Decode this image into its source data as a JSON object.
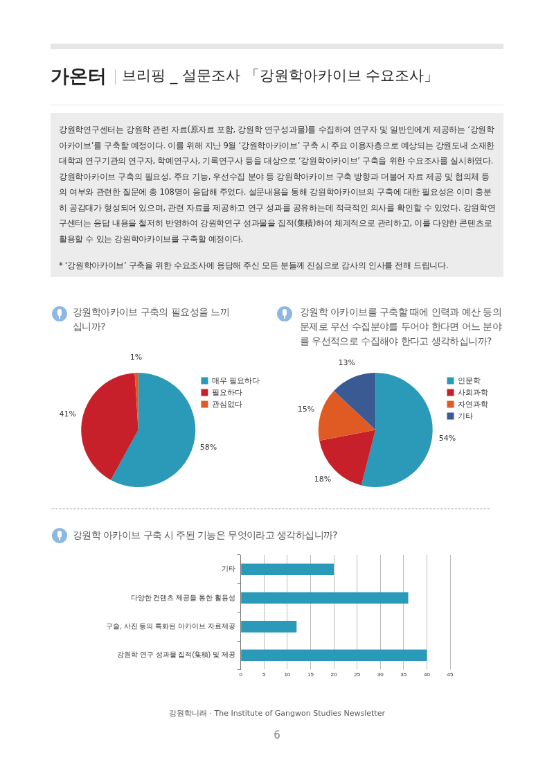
{
  "chart_data": [
    {
      "type": "other",
      "title": "가온터",
      "subtitle": "브리핑 _ 설문조사 「강원학아카이브 수요조사」",
      "annotations": [
        "강원학연구센터는 강원학 관련 자료(原자료 포함, 강원학 연구성과물)를 수집하여 연구자 및 일반인에게 제공하는 ‘강원학아카이브’를 구축할 예정이다. 이를 위해 지난 9월 ‘강원학아카이브’ 구축 시 주요 이용자층으로 예상되는 강원도내 소재한 대학과 연구기관의 연구자, 학예연구사, 기록연구사 등을 대상으로 ‘강원학아카이브’ 구축을 위한 수요조사를 실시하였다.",
        "강원학아카이브 구축의 필요성, 주요 기능, 우선수집 분야 등 강원학아카이브 구축 방향과 더불어 자료 제공 및 협의체 등의 여부와 관련한 질문에 총 108명이 응답해 주었다. 설문내용을 통해 강원학아카이브의 구축에 대한 필요성은 이미 충분히 공감대가 형성되어 있으며, 관련 자료를 제공하고 연구 성과를 공유하는데 적극적인 의사를 확인할 수 있었다. 강원학연구센터는 응답 내용을 철저히 반영하여 강원학연구 성과물을 집적(集積)하여 체계적으로 관리하고, 이를 다양한 콘텐츠로 활용할 수 있는 강원학아카이브를 구축할 예정이다.",
        "* ‘강원학아카이브’ 구축을 위한 수요조사에 응답해 주신 모든 분들께 진심으로 감사의 인사를 전해 드립니다.",
        "강원학니래 · The Institute of Gangwon Studies  Newsletter",
        "6"
      ]
    },
    {
      "type": "pie",
      "title": "강원학아카이브 구축의 필요성을 느끼십니까?",
      "categories": [
        "매우 필요하다",
        "필요하다",
        "관심없다"
      ],
      "values": [
        58,
        41,
        1
      ],
      "colors": [
        "#2a9ab8",
        "#c8202a",
        "#e05a23"
      ],
      "value_labels": [
        "58%",
        "41%",
        "1%"
      ],
      "legend": "right"
    },
    {
      "type": "pie",
      "title": "강원학 아카이브를 구축할 때에 인력과 예산 등의 문제로 우선 수집분야를 두어야 한다면 어느 분야를 우선적으로 수집해야 한다고 생각하십니까?",
      "categories": [
        "인문학",
        "사회과학",
        "자연과학",
        "기타"
      ],
      "values": [
        54,
        18,
        15,
        13
      ],
      "colors": [
        "#2a9ab8",
        "#c8202a",
        "#e05a23",
        "#3a5a94"
      ],
      "value_labels": [
        "54%",
        "18%",
        "15%",
        "13%"
      ],
      "legend": "right"
    },
    {
      "type": "bar",
      "orientation": "horizontal",
      "title": "강원학 아카이브 구축 시 주된 기능은 무엇이라고 생각하십니까?",
      "categories": [
        "기타",
        "다양한 컨텐츠 제공을 통한 활용성",
        "구술, 사진 등의 특화된 아카이브 자료제공",
        "강원학 연구 성과물 집적(集積) 및 제공"
      ],
      "values": [
        20,
        36,
        12,
        40
      ],
      "color": "#2a9ab8",
      "xlim": [
        0,
        45
      ],
      "xticks": [
        0,
        5,
        10,
        15,
        20,
        25,
        30,
        35,
        40,
        45
      ],
      "grid": "x"
    }
  ]
}
